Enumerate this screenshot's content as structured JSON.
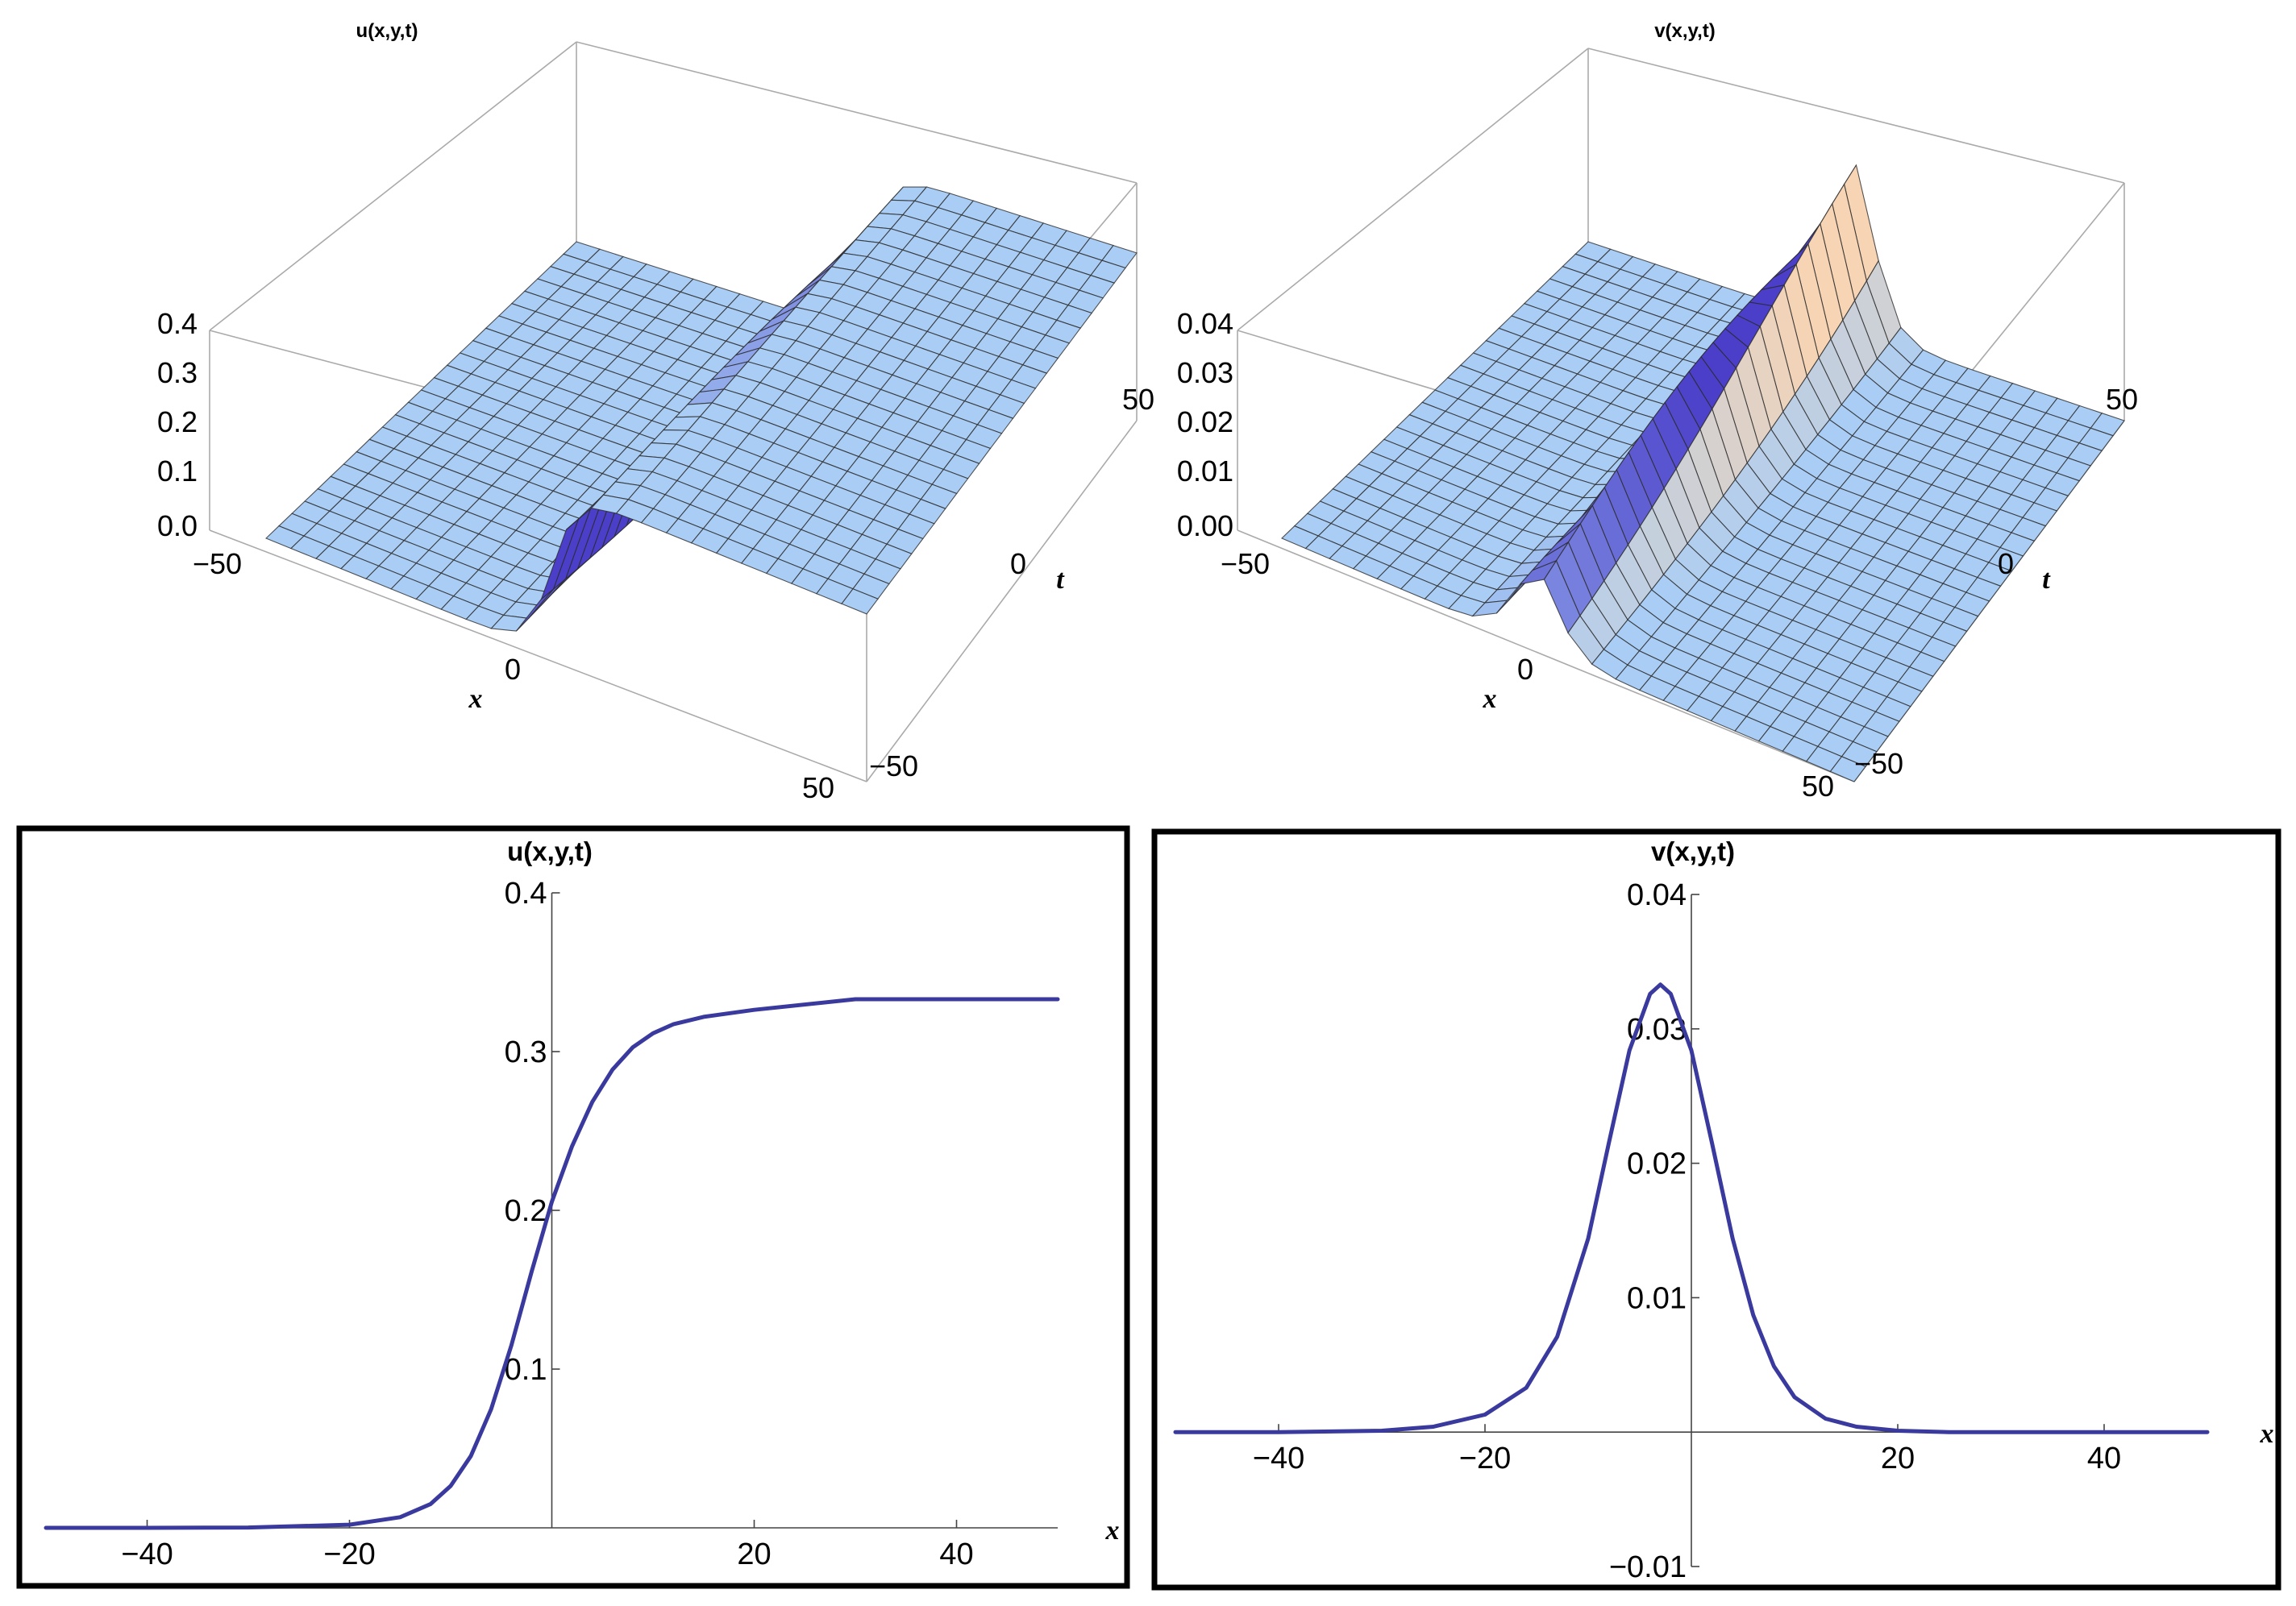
{
  "colors": {
    "curve": "#3a3a9e",
    "surface_flat": "#a9cdf5",
    "surface_wave": "#4b3fc9",
    "surface_peak": "#f6d4b4",
    "grid": "#2a2a2a"
  },
  "chart_data": [
    {
      "id": "u-surface",
      "type": "surface3d",
      "title": "u(x,y,t)",
      "xlabel": "x",
      "ylabel": "t",
      "x_range": [
        -50,
        50
      ],
      "t_range": [
        -50,
        50
      ],
      "z_range": [
        0,
        0.4
      ],
      "x_ticks": [
        "−50",
        "0",
        "50"
      ],
      "t_ticks": [
        "−50",
        "0",
        "50"
      ],
      "z_ticks": [
        "0.0",
        "0.1",
        "0.2",
        "0.3",
        "0.4"
      ],
      "z_low": 0,
      "z_high": 0.333,
      "shape": "kink"
    },
    {
      "id": "v-surface",
      "type": "surface3d",
      "title": "v(x,y,t)",
      "xlabel": "x",
      "ylabel": "t",
      "x_range": [
        -50,
        50
      ],
      "t_range": [
        -50,
        50
      ],
      "z_range": [
        0,
        0.04
      ],
      "x_ticks": [
        "−50",
        "0",
        "50"
      ],
      "t_ticks": [
        "−50",
        "0",
        "50"
      ],
      "z_ticks": [
        "0.00",
        "0.01",
        "0.02",
        "0.03",
        "0.04"
      ],
      "z_peak": 0.0333,
      "shape": "soliton"
    },
    {
      "id": "u-line",
      "type": "line",
      "title": "u(x,y,t)",
      "xlabel": "x",
      "ylabel": "",
      "xlim": [
        -50,
        50
      ],
      "ylim": [
        0,
        0.4
      ],
      "x_ticks": [
        -40,
        -20,
        20,
        40
      ],
      "x_tick_labels": [
        "−40",
        "−20",
        "20",
        "40"
      ],
      "y_ticks": [
        0.1,
        0.2,
        0.3,
        0.4
      ],
      "y_tick_labels": [
        "0.1",
        "0.2",
        "0.3",
        "0.4"
      ],
      "x": [
        -50,
        -40,
        -30,
        -20,
        -15,
        -12,
        -10,
        -8,
        -6,
        -4,
        -2,
        0,
        2,
        4,
        6,
        8,
        10,
        12,
        15,
        20,
        30,
        40,
        50
      ],
      "y": [
        0.0,
        0.0,
        0.0002,
        0.002,
        0.0067,
        0.0149,
        0.0264,
        0.0453,
        0.0747,
        0.1149,
        0.1613,
        0.2054,
        0.2404,
        0.2683,
        0.2887,
        0.3027,
        0.3115,
        0.3172,
        0.3219,
        0.3263,
        0.333,
        0.333,
        0.333
      ]
    },
    {
      "id": "v-line",
      "type": "line",
      "title": "v(x,y,t)",
      "xlabel": "x",
      "ylabel": "",
      "xlim": [
        -50,
        50
      ],
      "ylim": [
        -0.01,
        0.04
      ],
      "x_ticks": [
        -40,
        -20,
        20,
        40
      ],
      "x_tick_labels": [
        "−40",
        "−20",
        "20",
        "40"
      ],
      "y_ticks": [
        -0.01,
        0.01,
        0.02,
        0.03,
        0.04
      ],
      "y_tick_labels": [
        "−0.01",
        "0.01",
        "0.02",
        "0.03",
        "0.04"
      ],
      "x": [
        -50,
        -40,
        -30,
        -25,
        -20,
        -16,
        -13,
        -10,
        -8,
        -6,
        -4,
        -3,
        -2,
        0,
        2,
        4,
        6,
        8,
        10,
        13,
        16,
        20,
        25,
        30,
        40,
        50
      ],
      "y": [
        0.0,
        0.0,
        0.0001,
        0.0004,
        0.0013,
        0.0033,
        0.0071,
        0.0144,
        0.0215,
        0.0284,
        0.0326,
        0.0333,
        0.0326,
        0.0284,
        0.0215,
        0.0144,
        0.0087,
        0.0049,
        0.0026,
        0.001,
        0.0004,
        0.0001,
        0.0,
        0.0,
        0.0,
        0.0
      ]
    }
  ]
}
